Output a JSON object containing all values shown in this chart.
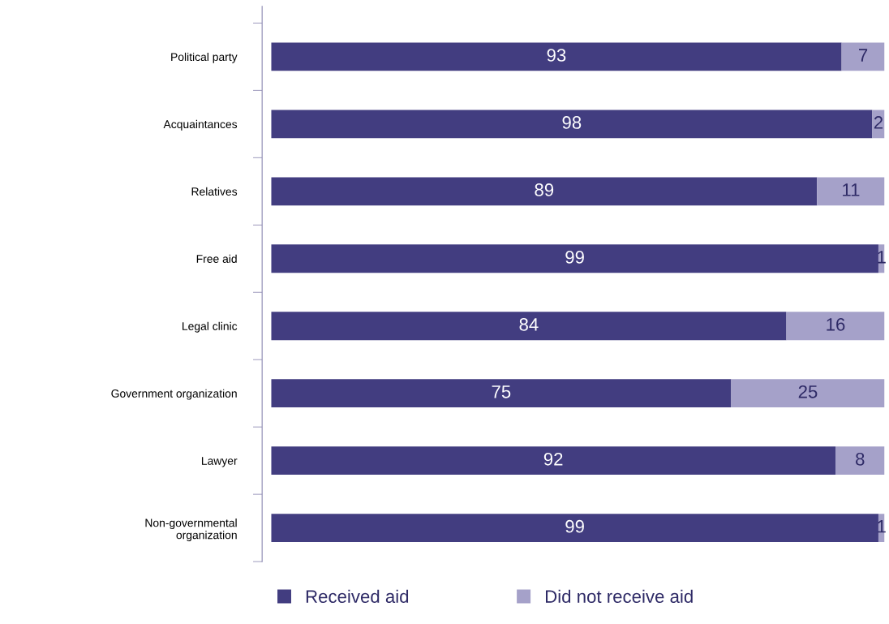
{
  "chart_data": {
    "type": "bar",
    "orientation": "horizontal",
    "stacked": true,
    "data_labels": true,
    "legend": "bottom",
    "grid": false,
    "categories": [
      "Political party",
      "Acquaintances",
      "Relatives",
      "Free aid",
      "Legal clinic",
      "Government organization",
      "Lawyer",
      "Non-governmental\norganization"
    ],
    "series": [
      {
        "name": "Received aid",
        "color": "#423d80",
        "values": [
          93,
          98,
          89,
          99,
          84,
          75,
          92,
          99
        ]
      },
      {
        "name": "Did not receive aid",
        "color": "#a5a1c9",
        "values": [
          7,
          2,
          11,
          1,
          16,
          25,
          8,
          1
        ]
      }
    ]
  }
}
